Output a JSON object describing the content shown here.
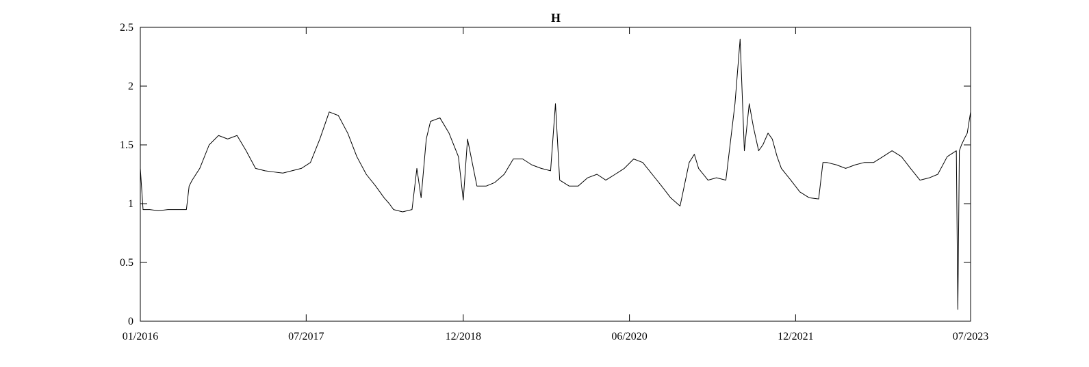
{
  "chart_data": {
    "type": "line",
    "title": "H",
    "xlabel": "",
    "ylabel": "",
    "xlim": [
      "2016-01",
      "2023-07"
    ],
    "ylim": [
      0,
      2.5
    ],
    "grid": false,
    "line_color": "#000000",
    "x_ticks": [
      {
        "label": "01/2016",
        "date": "2016-01"
      },
      {
        "label": "07/2017",
        "date": "2017-07"
      },
      {
        "label": "12/2018",
        "date": "2018-12"
      },
      {
        "label": "06/2020",
        "date": "2020-06"
      },
      {
        "label": "12/2021",
        "date": "2021-12"
      },
      {
        "label": "07/2023",
        "date": "2023-07"
      }
    ],
    "y_ticks": [
      {
        "label": "0",
        "value": 0
      },
      {
        "label": "0.5",
        "value": 0.5
      },
      {
        "label": "1",
        "value": 1
      },
      {
        "label": "1.5",
        "value": 1.5
      },
      {
        "label": "2",
        "value": 2
      },
      {
        "label": "2.5",
        "value": 2.5
      }
    ],
    "series": [
      {
        "x": [
          "2016-01-01",
          "2016-01-10",
          "2016-02-01",
          "2016-03-01",
          "2016-04-01",
          "2016-05-01",
          "2016-06-01",
          "2016-06-10",
          "2016-06-20",
          "2016-07-15",
          "2016-08-15",
          "2016-09-15",
          "2016-10-15",
          "2016-11-15",
          "2016-12-15",
          "2017-01-15",
          "2017-02-15",
          "2017-03-15",
          "2017-04-15",
          "2017-05-15",
          "2017-06-15",
          "2017-07-15",
          "2017-08-15",
          "2017-09-15",
          "2017-10-15",
          "2017-11-15",
          "2017-12-15",
          "2018-01-15",
          "2018-02-15",
          "2018-03-15",
          "2018-04-01",
          "2018-04-15",
          "2018-05-15",
          "2018-06-15",
          "2018-07-01",
          "2018-07-15",
          "2018-08-01",
          "2018-08-15",
          "2018-09-15",
          "2018-10-15",
          "2018-11-15",
          "2018-12-01",
          "2018-12-15",
          "2019-01-15",
          "2019-02-15",
          "2019-03-15",
          "2019-04-15",
          "2019-05-15",
          "2019-06-15",
          "2019-07-15",
          "2019-08-15",
          "2019-09-15",
          "2019-10-01",
          "2019-10-15",
          "2019-11-15",
          "2019-12-15",
          "2020-01-15",
          "2020-02-15",
          "2020-03-15",
          "2020-04-15",
          "2020-05-15",
          "2020-06-15",
          "2020-07-15",
          "2020-08-15",
          "2020-09-15",
          "2020-10-15",
          "2020-11-15",
          "2020-12-15",
          "2021-01-01",
          "2021-01-15",
          "2021-02-15",
          "2021-03-15",
          "2021-04-15",
          "2021-05-15",
          "2021-06-01",
          "2021-06-15",
          "2021-07-01",
          "2021-07-15",
          "2021-08-01",
          "2021-08-15",
          "2021-09-01",
          "2021-09-15",
          "2021-10-01",
          "2021-10-15",
          "2021-11-15",
          "2021-12-15",
          "2022-01-15",
          "2022-02-15",
          "2022-03-01",
          "2022-03-15",
          "2022-04-15",
          "2022-05-15",
          "2022-06-15",
          "2022-07-15",
          "2022-08-15",
          "2022-09-15",
          "2022-10-15",
          "2022-11-15",
          "2022-12-15",
          "2023-01-15",
          "2023-02-15",
          "2023-03-15",
          "2023-04-15",
          "2023-05-15",
          "2023-05-20",
          "2023-05-25",
          "2023-06-01",
          "2023-06-10",
          "2023-06-20",
          "2023-07-01"
        ],
        "y": [
          1.3,
          0.95,
          0.95,
          0.94,
          0.95,
          0.95,
          0.95,
          1.15,
          1.2,
          1.3,
          1.5,
          1.58,
          1.55,
          1.58,
          1.45,
          1.3,
          1.28,
          1.27,
          1.26,
          1.28,
          1.3,
          1.35,
          1.55,
          1.78,
          1.75,
          1.6,
          1.4,
          1.25,
          1.15,
          1.05,
          1.0,
          0.95,
          0.93,
          0.95,
          1.3,
          1.05,
          1.55,
          1.7,
          1.73,
          1.6,
          1.4,
          1.03,
          1.55,
          1.15,
          1.15,
          1.18,
          1.25,
          1.38,
          1.38,
          1.33,
          1.3,
          1.28,
          1.85,
          1.2,
          1.15,
          1.15,
          1.22,
          1.25,
          1.2,
          1.25,
          1.3,
          1.38,
          1.35,
          1.25,
          1.15,
          1.05,
          0.98,
          1.35,
          1.42,
          1.3,
          1.2,
          1.22,
          1.2,
          1.85,
          2.4,
          1.45,
          1.85,
          1.65,
          1.45,
          1.5,
          1.6,
          1.55,
          1.4,
          1.3,
          1.2,
          1.1,
          1.05,
          1.04,
          1.35,
          1.35,
          1.33,
          1.3,
          1.33,
          1.35,
          1.35,
          1.4,
          1.45,
          1.4,
          1.3,
          1.2,
          1.22,
          1.25,
          1.4,
          1.45,
          0.1,
          1.45,
          1.5,
          1.55,
          1.6,
          1.78
        ]
      }
    ]
  }
}
